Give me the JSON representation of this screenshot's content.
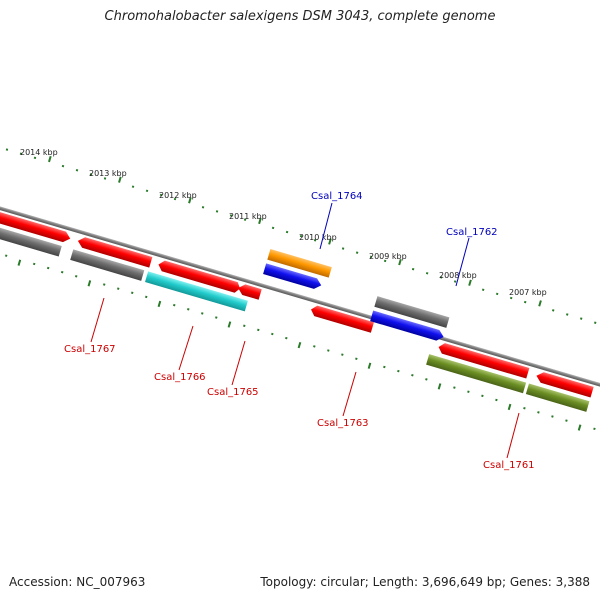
{
  "title": "Chromohalobacter salexigens DSM 3043, complete genome",
  "accession": "Accession: NC_007963",
  "summary": "Topology: circular; Length: 3,696,649 bp; Genes: 3,388",
  "ruler_labels": [
    "2014 kbp",
    "2013 kbp",
    "2012 kbp",
    "2011 kbp",
    "2010 kbp",
    "2009 kbp",
    "2008 kbp",
    "2007 kbp"
  ],
  "gene_labels_top": [
    "Csal_1764",
    "Csal_1762"
  ],
  "gene_labels_bottom": [
    "Csal_1767",
    "Csal_1766",
    "Csal_1765",
    "Csal_1763",
    "Csal_1761"
  ],
  "colors": {
    "label_top": "#0000bb",
    "label_bottom": "#cc0000",
    "tick": "#2a7a2a",
    "backbone": "#808080",
    "red": "#ff0000",
    "gray": "#6e6e6e",
    "cyan": "#22cccc",
    "blue": "#1010ee",
    "orange": "#ff9900",
    "olive": "#6b8e23"
  }
}
